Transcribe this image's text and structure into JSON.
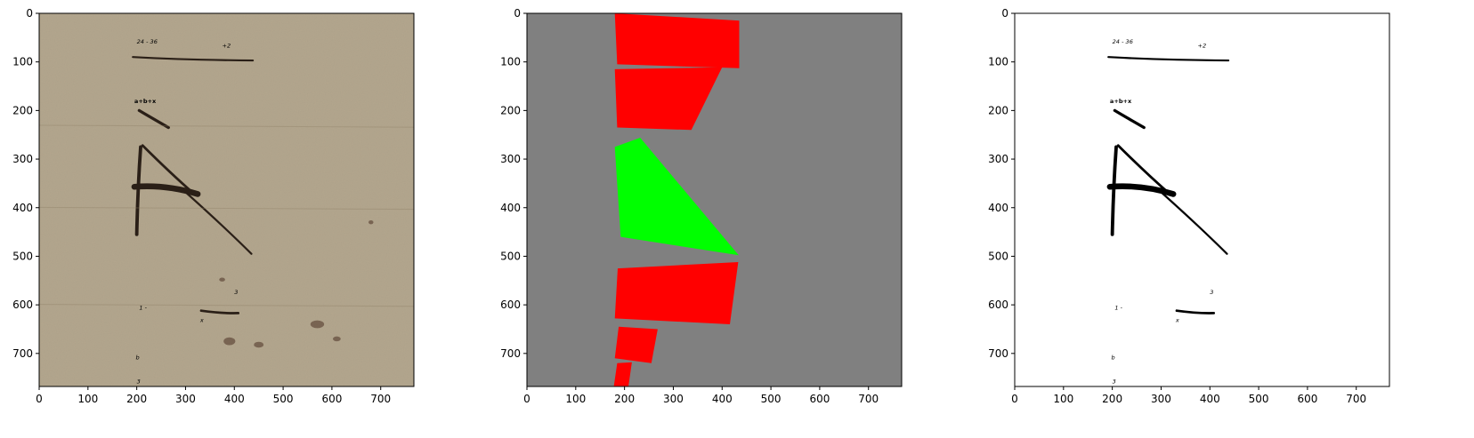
{
  "figure": {
    "background": "#ffffff",
    "panel_count": 3
  },
  "axes": {
    "x_ticks": [
      "0",
      "100",
      "200",
      "300",
      "400",
      "500",
      "600",
      "700"
    ],
    "y_ticks": [
      "0",
      "100",
      "200",
      "300",
      "400",
      "500",
      "600",
      "700"
    ],
    "x_range": [
      0,
      768
    ],
    "y_range": [
      0,
      768
    ],
    "y_inverted": true
  },
  "panels": [
    {
      "id": "scan",
      "content": "scanned manuscript page with handwritten math",
      "paper_color": "#b4a78e",
      "ink_color": "#2a1f17"
    },
    {
      "id": "mask",
      "content": "segmentation mask",
      "background_color": "#808080",
      "colors": {
        "red": "#ff0000",
        "green": "#00ff00"
      },
      "regions": [
        {
          "color": "red",
          "points": [
            [
              180,
              0
            ],
            [
              435,
              15
            ],
            [
              435,
              113
            ],
            [
              185,
              105
            ]
          ]
        },
        {
          "color": "red",
          "points": [
            [
              180,
              115
            ],
            [
              400,
              111
            ],
            [
              337,
              240
            ],
            [
              185,
              235
            ]
          ]
        },
        {
          "color": "green",
          "points": [
            [
              180,
              275
            ],
            [
              232,
              256
            ],
            [
              434,
              498
            ],
            [
              192,
              460
            ]
          ]
        },
        {
          "color": "red",
          "points": [
            [
              186,
              525
            ],
            [
              433,
              512
            ],
            [
              416,
              640
            ],
            [
              180,
              628
            ]
          ]
        },
        {
          "color": "red",
          "points": [
            [
              188,
              645
            ],
            [
              268,
              650
            ],
            [
              255,
              720
            ],
            [
              180,
              710
            ]
          ]
        },
        {
          "color": "red",
          "points": [
            [
              185,
              720
            ],
            [
              215,
              718
            ],
            [
              208,
              768
            ],
            [
              178,
              768
            ]
          ]
        }
      ]
    },
    {
      "id": "binarized",
      "content": "binarized handwriting",
      "background_color": "#ffffff",
      "ink_color": "#000000"
    }
  ],
  "handwriting": {
    "line1": "24 - 36",
    "line1_superscript": "+2",
    "line2": "a+b+x",
    "letter": "R",
    "expression_prefix": "1 -",
    "expression_variable": "x",
    "expression_exponent": "3",
    "glyph1": "b",
    "glyph2": "3"
  }
}
